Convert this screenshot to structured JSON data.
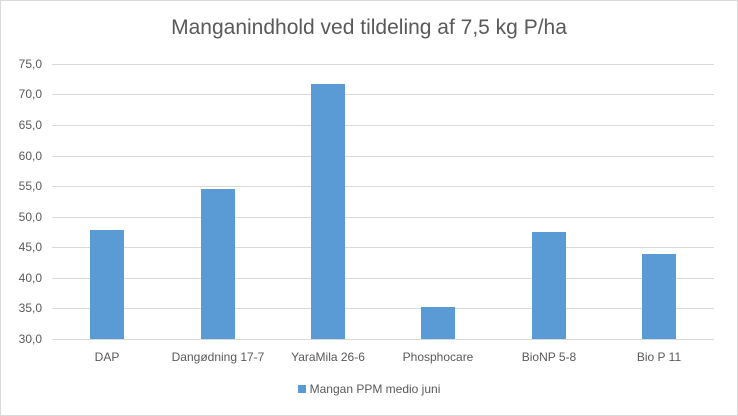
{
  "chart_data": {
    "type": "bar",
    "title": "Manganindhold ved tildeling af 7,5 kg P/ha",
    "categories": [
      "DAP",
      "Dangødning 17-7",
      "YaraMila 26-6",
      "Phosphocare",
      "BioNP 5-8",
      "Bio P 11"
    ],
    "series": [
      {
        "name": "Mangan PPM medio juni",
        "color": "#5b9bd5",
        "values": [
          47.8,
          54.5,
          71.7,
          35.2,
          47.5,
          43.9
        ]
      }
    ],
    "xlabel": "",
    "ylabel": "",
    "ylim": [
      30,
      75
    ],
    "yticks": [
      "30,0",
      "35,0",
      "40,0",
      "45,0",
      "50,0",
      "55,0",
      "60,0",
      "65,0",
      "70,0",
      "75,0"
    ],
    "grid": true,
    "legend_position": "bottom"
  }
}
